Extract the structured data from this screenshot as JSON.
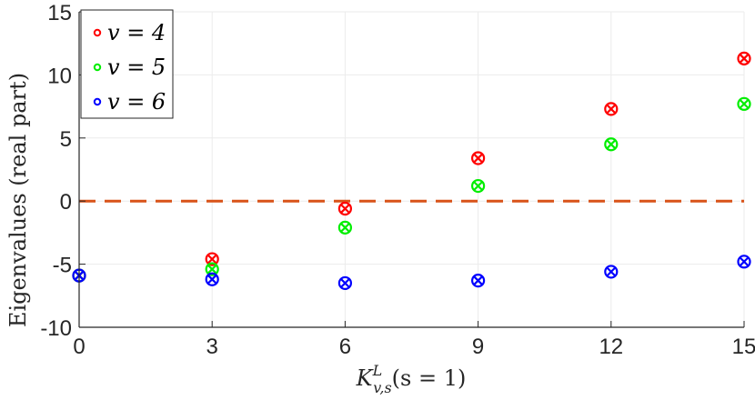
{
  "chart_data": {
    "type": "scatter",
    "xlabel_main": "K",
    "xlabel_sup": "L",
    "xlabel_sub": "v,s",
    "xlabel_tail": "(s = 1)",
    "ylabel": "Eigenvalues (real part)",
    "xlim": [
      0,
      15
    ],
    "ylim": [
      -10,
      15
    ],
    "xticks": [
      "0",
      "3",
      "6",
      "9",
      "12",
      "15"
    ],
    "yticks": [
      "-10",
      "-5",
      "0",
      "5",
      "10",
      "15"
    ],
    "grid": true,
    "legend_position": "top-left",
    "reference_line": {
      "y": 0,
      "color": "#d95319",
      "style": "dashed"
    },
    "series": [
      {
        "name": "v = 4",
        "color": "#ff0000",
        "points": [
          [
            0,
            -5.9
          ],
          [
            3,
            -4.6
          ],
          [
            6,
            -0.6
          ],
          [
            9,
            3.4
          ],
          [
            12,
            7.3
          ],
          [
            15,
            11.3
          ]
        ]
      },
      {
        "name": "v = 5",
        "color": "#00ee00",
        "points": [
          [
            0,
            -5.9
          ],
          [
            3,
            -5.4
          ],
          [
            6,
            -2.1
          ],
          [
            9,
            1.2
          ],
          [
            12,
            4.5
          ],
          [
            15,
            7.7
          ]
        ]
      },
      {
        "name": "v = 6",
        "color": "#0000ff",
        "points": [
          [
            0,
            -5.9
          ],
          [
            3,
            -6.2
          ],
          [
            6,
            -6.5
          ],
          [
            9,
            -6.3
          ],
          [
            12,
            -5.6
          ],
          [
            15,
            -4.8
          ]
        ]
      }
    ]
  }
}
